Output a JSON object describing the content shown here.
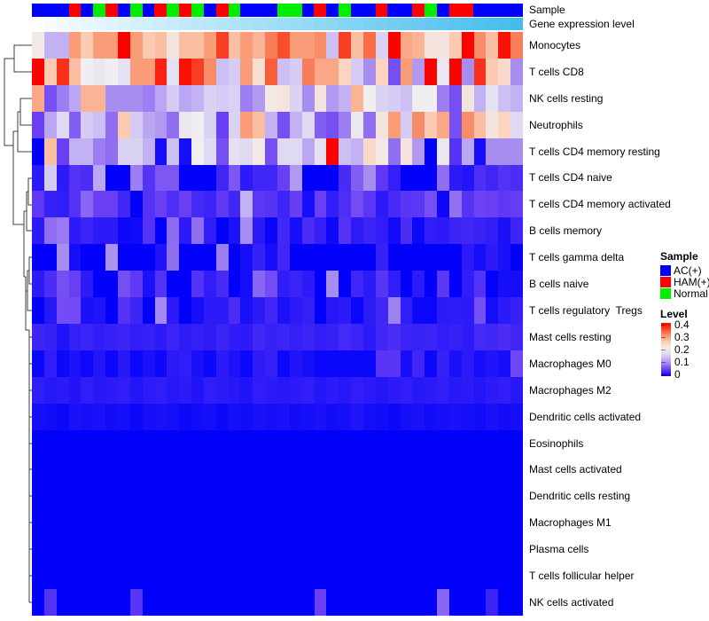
{
  "annotations": {
    "sample_label": "Sample",
    "expr_label": "Gene expression level",
    "sample_colors": {
      "AC(+)": "#0000FF",
      "HAM(+)": "#FF0000",
      "Normal": "#00EE00"
    },
    "sample_by_column": [
      "AC(+)",
      "AC(+)",
      "AC(+)",
      "HAM(+)",
      "AC(+)",
      "Normal",
      "HAM(+)",
      "AC(+)",
      "Normal",
      "AC(+)",
      "HAM(+)",
      "Normal",
      "HAM(+)",
      "Normal",
      "AC(+)",
      "HAM(+)",
      "Normal",
      "AC(+)",
      "AC(+)",
      "AC(+)",
      "Normal",
      "Normal",
      "AC(+)",
      "HAM(+)",
      "AC(+)",
      "Normal",
      "AC(+)",
      "AC(+)",
      "HAM(+)",
      "AC(+)",
      "AC(+)",
      "HAM(+)",
      "Normal",
      "AC(+)",
      "HAM(+)",
      "HAM(+)",
      "AC(+)",
      "AC(+)",
      "AC(+)",
      "AC(+)"
    ],
    "expr_gradient": [
      "#FBFDFF",
      "#44BDED"
    ],
    "expr_values": [
      0,
      0.026,
      0.051,
      0.077,
      0.103,
      0.128,
      0.154,
      0.179,
      0.205,
      0.231,
      0.256,
      0.282,
      0.308,
      0.333,
      0.359,
      0.385,
      0.41,
      0.436,
      0.462,
      0.487,
      0.513,
      0.538,
      0.564,
      0.59,
      0.615,
      0.641,
      0.667,
      0.692,
      0.718,
      0.744,
      0.769,
      0.795,
      0.821,
      0.846,
      0.872,
      0.897,
      0.923,
      0.949,
      0.974,
      1
    ]
  },
  "chart_data": {
    "type": "heatmap",
    "title": "",
    "n_columns": 40,
    "value_range": [
      0,
      0.4
    ],
    "legend_position": "right",
    "colormap_stops": [
      [
        0,
        "#0202FA"
      ],
      [
        0.05,
        "#6A3FF4"
      ],
      [
        0.1,
        "#A88DF1"
      ],
      [
        0.15,
        "#D5CBF4"
      ],
      [
        0.2,
        "#F0EEF0"
      ],
      [
        0.25,
        "#FBD5C0"
      ],
      [
        0.3,
        "#F99C77"
      ],
      [
        0.35,
        "#F94E2C"
      ],
      [
        0.4,
        "#FA0300"
      ]
    ],
    "row_labels": [
      "Monocytes",
      "T cells CD8",
      "NK cells resting",
      "Neutrophils",
      "T cells CD4 memory resting",
      "T cells CD4 naive",
      "T cells CD4 memory activated",
      "B cells memory",
      "T cells gamma delta",
      "B cells naive",
      "T cells regulatory  Tregs",
      "Mast cells resting",
      "Macrophages M0",
      "Macrophages M2",
      "Dendritic cells activated",
      "Eosinophils",
      "Mast cells activated",
      "Dendritic cells resting",
      "Macrophages M1",
      "Plasma cells",
      "T cells follicular helper",
      "NK cells activated"
    ],
    "values": [
      [
        0.21,
        0.13,
        0.13,
        0.3,
        0.26,
        0.3,
        0.3,
        0.4,
        0.3,
        0.26,
        0.27,
        0.22,
        0.27,
        0.27,
        0.3,
        0.36,
        0.27,
        0.3,
        0.28,
        0.32,
        0.35,
        0.3,
        0.3,
        0.31,
        0.14,
        0.36,
        0.27,
        0.33,
        0.16,
        0.4,
        0.29,
        0.28,
        0.22,
        0.22,
        0.26,
        0.4,
        0.31,
        0.27,
        0.39,
        0.32
      ],
      [
        0.4,
        0.26,
        0.37,
        0.27,
        0.2,
        0.19,
        0.2,
        0.18,
        0.3,
        0.3,
        0.38,
        0.18,
        0.39,
        0.36,
        0.31,
        0.14,
        0.15,
        0.3,
        0.23,
        0.34,
        0.14,
        0.15,
        0.32,
        0.29,
        0.29,
        0.25,
        0.15,
        0.1,
        0.25,
        0.06,
        0.3,
        0.11,
        0.4,
        0.19,
        0.4,
        0.1,
        0.37,
        0.26,
        0.24,
        0.1
      ],
      [
        0.29,
        0.06,
        0.09,
        0.12,
        0.28,
        0.28,
        0.1,
        0.1,
        0.1,
        0.09,
        0.12,
        0.15,
        0.12,
        0.13,
        0.16,
        0.15,
        0.16,
        0.09,
        0.11,
        0.21,
        0.22,
        0.16,
        0.1,
        0.22,
        0.11,
        0.13,
        0.28,
        0.2,
        0.16,
        0.15,
        0.14,
        0.2,
        0.2,
        0.09,
        0.06,
        0.22,
        0.13,
        0.18,
        0.14,
        0.13
      ],
      [
        0.05,
        0.12,
        0.17,
        0.07,
        0.15,
        0.14,
        0.08,
        0.26,
        0.15,
        0.12,
        0.11,
        0.08,
        0.19,
        0.2,
        0.16,
        0.05,
        0.16,
        0.3,
        0.27,
        0.13,
        0.06,
        0.13,
        0.17,
        0.07,
        0.06,
        0.09,
        0.19,
        0.08,
        0.22,
        0.3,
        0.15,
        0.31,
        0.26,
        0.29,
        0.06,
        0.31,
        0.27,
        0.22,
        0.25,
        0.17
      ],
      [
        0.0,
        0.27,
        0.05,
        0.13,
        0.13,
        0.09,
        0.08,
        0.16,
        0.16,
        0.13,
        0.01,
        0.14,
        0.01,
        0.2,
        0.17,
        0.06,
        0.18,
        0.17,
        0.21,
        0.06,
        0.17,
        0.17,
        0.12,
        0.18,
        0.4,
        0.14,
        0.13,
        0.24,
        0.21,
        0.08,
        0.22,
        0.11,
        0.0,
        0.19,
        0.04,
        0.12,
        0.01,
        0.1,
        0.1,
        0.1
      ],
      [
        0.02,
        0.15,
        0.02,
        0.04,
        0.035,
        0.12,
        0.0,
        0.0,
        0.09,
        0.04,
        0.065,
        0.065,
        0.0,
        0.0,
        0.0,
        0.03,
        0.065,
        0.02,
        0.03,
        0.03,
        0.05,
        0.11,
        0.0,
        0.0,
        0.0,
        0.034,
        0.07,
        0.1,
        0.044,
        0.024,
        0.0,
        0.0,
        0.0,
        0.08,
        0.02,
        0.015,
        0.037,
        0.03,
        0.04,
        0.035
      ],
      [
        0.045,
        0.025,
        0.022,
        0.04,
        0.075,
        0.05,
        0.05,
        0.03,
        0.0,
        0.04,
        0.05,
        0.037,
        0.05,
        0.032,
        0.028,
        0.045,
        0.03,
        0.13,
        0.043,
        0.04,
        0.029,
        0.049,
        0.01,
        0.05,
        0.023,
        0.036,
        0.058,
        0.043,
        0.02,
        0.033,
        0.042,
        0.043,
        0.06,
        0.005,
        0.083,
        0.04,
        0.052,
        0.05,
        0.044,
        0.048
      ],
      [
        0.02,
        0.08,
        0.088,
        0.02,
        0.028,
        0.02,
        0.02,
        0.005,
        0.007,
        0.04,
        0.0,
        0.078,
        0.02,
        0.08,
        0.022,
        0.0,
        0.012,
        0.1,
        0.02,
        0.003,
        0.031,
        0.01,
        0.035,
        0.024,
        0.005,
        0.04,
        0.021,
        0.028,
        0.022,
        0.008,
        0.035,
        0.005,
        0.022,
        0.02,
        0.028,
        0.03,
        0.027,
        0.022,
        0.012,
        0.029
      ],
      [
        0.0,
        0.0,
        0.1,
        0.01,
        0.0,
        0.0,
        0.105,
        0.0,
        0.0,
        0.0,
        0.015,
        0.08,
        0.0,
        0.0,
        0.0,
        0.09,
        0.0,
        0.01,
        0.025,
        0.01,
        0.03,
        0.0,
        0.0,
        0.0,
        0.0,
        0.0,
        0.0,
        0.0,
        0.025,
        0.0,
        0.0,
        0.0,
        0.0,
        0.0,
        0.0,
        0.02,
        0.01,
        0.02,
        0.012,
        0.0
      ],
      [
        0.02,
        0.035,
        0.06,
        0.05,
        0.02,
        0.0,
        0.0,
        0.06,
        0.045,
        0.012,
        0.04,
        0.0,
        0.0,
        0.04,
        0.022,
        0.034,
        0.0,
        0.01,
        0.075,
        0.058,
        0.022,
        0.028,
        0.02,
        0.0,
        0.1,
        0.0,
        0.03,
        0.02,
        0.042,
        0.022,
        0.0,
        0.02,
        0.0,
        0.043,
        0.0,
        0.022,
        0.04,
        0.0,
        0.01,
        0.01
      ],
      [
        0.0,
        0.018,
        0.058,
        0.057,
        0.012,
        0.015,
        0.0,
        0.04,
        0.029,
        0.0,
        0.098,
        0.02,
        0.0,
        0.01,
        0.02,
        0.02,
        0.035,
        0.012,
        0.02,
        0.03,
        0.012,
        0.02,
        0.024,
        0.0,
        0.017,
        0.02,
        0.004,
        0.021,
        0.03,
        0.092,
        0.022,
        0.005,
        0.004,
        0.02,
        0.021,
        0.02,
        0.06,
        0.01,
        0.02,
        0.025
      ],
      [
        0.029,
        0.025,
        0.014,
        0.024,
        0.028,
        0.022,
        0.025,
        0.028,
        0.023,
        0.025,
        0.02,
        0.028,
        0.021,
        0.024,
        0.021,
        0.028,
        0.022,
        0.02,
        0.03,
        0.025,
        0.028,
        0.024,
        0.028,
        0.022,
        0.025,
        0.032,
        0.028,
        0.02,
        0.03,
        0.035,
        0.028,
        0.025,
        0.028,
        0.022,
        0.025,
        0.02,
        0.032,
        0.03,
        0.035,
        0.03
      ],
      [
        0.004,
        0.022,
        0.005,
        0.013,
        0.006,
        0.016,
        0.004,
        0.018,
        0.004,
        0.012,
        0.005,
        0.02,
        0.022,
        0.012,
        0.005,
        0.02,
        0.013,
        0.004,
        0.021,
        0.025,
        0.004,
        0.015,
        0.01,
        0.004,
        0.004,
        0.004,
        0.004,
        0.004,
        0.042,
        0.042,
        0.01,
        0.03,
        0.004,
        0.025,
        0.012,
        0.02,
        0.01,
        0.015,
        0.01,
        0.055
      ],
      [
        0.022,
        0.018,
        0.02,
        0.015,
        0.022,
        0.018,
        0.02,
        0.022,
        0.016,
        0.02,
        0.022,
        0.018,
        0.02,
        0.015,
        0.022,
        0.02,
        0.018,
        0.015,
        0.022,
        0.02,
        0.018,
        0.02,
        0.022,
        0.016,
        0.02,
        0.018,
        0.022,
        0.02,
        0.016,
        0.02,
        0.022,
        0.018,
        0.02,
        0.022,
        0.018,
        0.02,
        0.016,
        0.02,
        0.022,
        0.018
      ],
      [
        0.01,
        0.008,
        0.005,
        0.012,
        0.01,
        0.012,
        0.008,
        0.01,
        0.005,
        0.01,
        0.012,
        0.01,
        0.005,
        0.008,
        0.01,
        0.005,
        0.01,
        0.008,
        0.012,
        0.01,
        0.012,
        0.008,
        0.01,
        0.012,
        0.008,
        0.01,
        0.015,
        0.01,
        0.008,
        0.005,
        0.01,
        0.012,
        0.008,
        0.01,
        0.012,
        0.01,
        0.008,
        0.012,
        0.008,
        0.01
      ],
      [
        0,
        0,
        0,
        0,
        0,
        0,
        0,
        0,
        0,
        0,
        0,
        0,
        0,
        0,
        0,
        0,
        0,
        0,
        0,
        0,
        0,
        0,
        0,
        0,
        0,
        0,
        0,
        0,
        0,
        0,
        0,
        0,
        0,
        0,
        0,
        0,
        0,
        0,
        0,
        0
      ],
      [
        0,
        0,
        0,
        0,
        0,
        0,
        0,
        0,
        0,
        0,
        0,
        0,
        0,
        0,
        0,
        0,
        0,
        0,
        0,
        0,
        0,
        0,
        0,
        0,
        0,
        0,
        0,
        0,
        0,
        0,
        0,
        0,
        0,
        0,
        0,
        0,
        0,
        0,
        0,
        0
      ],
      [
        0,
        0,
        0,
        0,
        0,
        0,
        0,
        0,
        0,
        0,
        0,
        0,
        0,
        0,
        0,
        0,
        0,
        0,
        0,
        0,
        0,
        0,
        0,
        0,
        0,
        0,
        0,
        0,
        0,
        0,
        0,
        0,
        0,
        0,
        0,
        0,
        0,
        0,
        0,
        0
      ],
      [
        0,
        0,
        0,
        0,
        0,
        0,
        0,
        0,
        0,
        0,
        0,
        0,
        0,
        0,
        0,
        0,
        0,
        0,
        0,
        0,
        0,
        0,
        0,
        0,
        0,
        0,
        0,
        0,
        0,
        0,
        0,
        0,
        0,
        0,
        0,
        0,
        0,
        0,
        0,
        0
      ],
      [
        0,
        0,
        0,
        0,
        0,
        0,
        0,
        0,
        0,
        0,
        0,
        0,
        0,
        0,
        0,
        0,
        0,
        0,
        0,
        0,
        0,
        0,
        0,
        0,
        0,
        0,
        0,
        0,
        0,
        0,
        0,
        0,
        0,
        0,
        0,
        0,
        0,
        0,
        0,
        0
      ],
      [
        0,
        0,
        0,
        0,
        0,
        0,
        0,
        0,
        0,
        0,
        0,
        0,
        0,
        0,
        0,
        0,
        0,
        0,
        0,
        0,
        0,
        0,
        0,
        0,
        0,
        0,
        0,
        0,
        0,
        0,
        0,
        0,
        0,
        0,
        0,
        0,
        0,
        0,
        0,
        0
      ],
      [
        0,
        0.04,
        0,
        0,
        0,
        0,
        0,
        0,
        0.042,
        0,
        0,
        0,
        0,
        0,
        0,
        0,
        0,
        0,
        0,
        0,
        0,
        0,
        0,
        0.05,
        0,
        0,
        0,
        0,
        0,
        0,
        0,
        0,
        0,
        0.075,
        0,
        0,
        0,
        0.028,
        0,
        0
      ]
    ]
  },
  "legend": {
    "sample_title": "Sample",
    "sample_items": [
      {
        "label": "AC(+)",
        "color": "#0000FF"
      },
      {
        "label": "HAM(+)",
        "color": "#FF0000"
      },
      {
        "label": "Normal",
        "color": "#00EE00"
      }
    ],
    "level_title": "Level",
    "level_ticks": [
      "0.4",
      "0.3",
      "0.2",
      "0.1",
      "0"
    ]
  },
  "dendrogram": {
    "line_color": "#3c3c3c",
    "paths": [
      "M36 51 H16 V81 H36",
      "M16 66 H5 V164 H15",
      "M36 111 H23 V141 H36",
      "M23 126 H20",
      "M36 171 H20 V126",
      "M20 148 H15",
      "M15 148 V253 H27",
      "M36 201 H32 V231 H36",
      "M32 216 H30",
      "M30 216 V260 H36",
      "M30 238 H27",
      "M27 238 V312",
      "M36 290 H33 V320 H36",
      "M33 305 H31",
      "M31 305 V350 H36",
      "M31 328 H29",
      "M27 312 H29 V328",
      "M29 328 V372 H33",
      "M33 372 V679",
      "M33 380 H36",
      "M33 410 H36",
      "M33 440 H36",
      "M33 470 H36",
      "M33 500 H36",
      "M33 529 H36",
      "M33 559 H36",
      "M33 589 H36",
      "M33 619 H36",
      "M33 649 H36",
      "M33 679 H36"
    ]
  }
}
